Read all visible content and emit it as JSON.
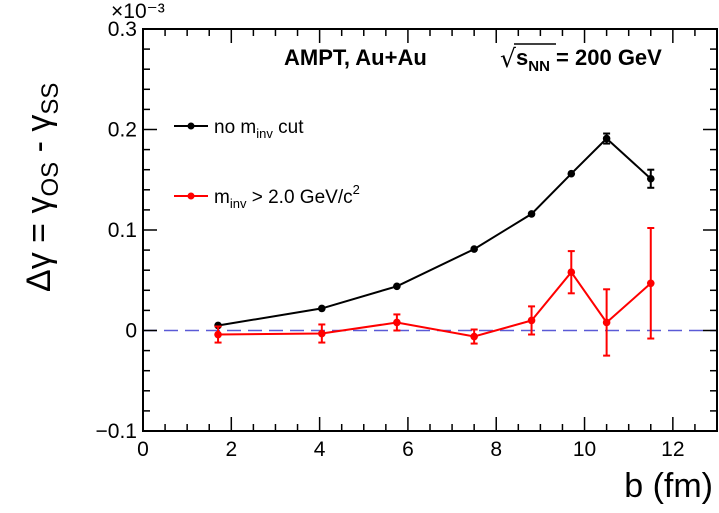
{
  "chart_data": {
    "type": "line",
    "x_axis": {
      "label": "b (fm)",
      "range": [
        0,
        13
      ],
      "ticks": [
        0,
        2,
        4,
        6,
        8,
        10,
        12
      ],
      "tick_labels": [
        "0",
        "2",
        "4",
        "6",
        "8",
        "10",
        "12"
      ]
    },
    "y_axis": {
      "label_parts": [
        "Δγ = γ",
        "OS",
        " - γ",
        "SS"
      ],
      "exponent": "×10⁻³",
      "range": [
        -0.1,
        0.3
      ],
      "ticks": [
        -0.1,
        0,
        0.1,
        0.2,
        0.3
      ],
      "tick_labels": [
        "−0.1",
        "0",
        "0.1",
        "0.2",
        "0.3"
      ]
    },
    "annotation": {
      "prefix": "AMPT, Au+Au",
      "sqrt_symbol": "√",
      "s_text": "s",
      "s_sub": "NN",
      "suffix": " = 200 GeV"
    },
    "reference_line": {
      "y": 0,
      "color": "#5a5ad6",
      "style": "dashed"
    },
    "legend_position": "upper-left",
    "series": [
      {
        "legend_text_parts": [
          "no m",
          "inv",
          " cut"
        ],
        "color": "#000000",
        "x": [
          1.7,
          4.05,
          5.75,
          7.5,
          8.8,
          9.7,
          10.5,
          11.5
        ],
        "y": [
          0.005,
          0.022,
          0.044,
          0.081,
          0.116,
          0.156,
          0.191,
          0.151
        ],
        "yerr": [
          0.001,
          0.001,
          0.001,
          0.001,
          0.002,
          0.002,
          0.005,
          0.009
        ]
      },
      {
        "legend_text_parts": [
          "m",
          "inv",
          " > 2.0 GeV/c",
          "2"
        ],
        "color": "#ff0000",
        "x": [
          1.7,
          4.05,
          5.75,
          7.5,
          8.8,
          9.7,
          10.5,
          11.5
        ],
        "y": [
          -0.004,
          -0.003,
          0.008,
          -0.006,
          0.01,
          0.058,
          0.008,
          0.047
        ],
        "yerr": [
          0.008,
          0.009,
          0.008,
          0.007,
          0.014,
          0.021,
          0.033,
          0.055
        ]
      }
    ]
  }
}
